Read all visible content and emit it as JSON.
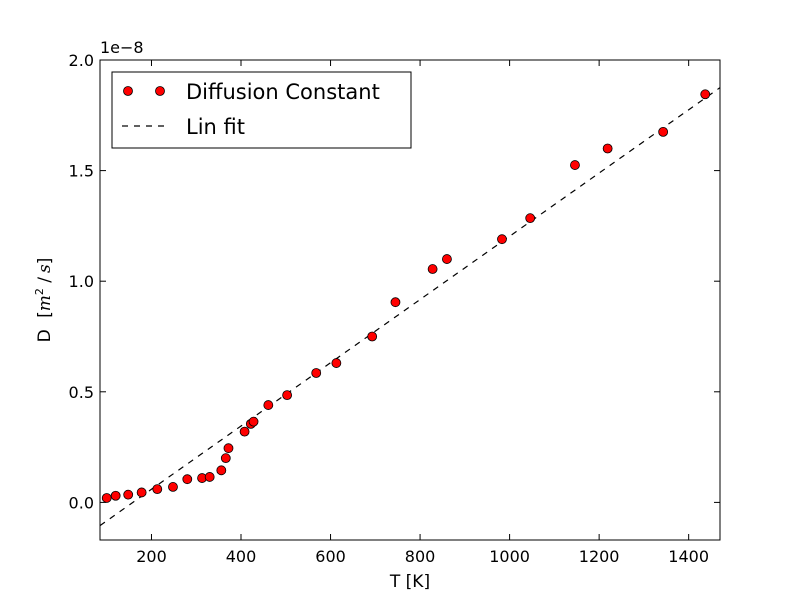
{
  "chart_data": {
    "type": "scatter",
    "xlabel": "T [K]",
    "ylabel": {
      "prefix": "D",
      "unit_open": "[",
      "unit_m": "m",
      "unit_exp": "2",
      "unit_sep": " /",
      "unit_s": "s",
      "unit_close": "]"
    },
    "y_offset_label": "1e−8",
    "xlim": [
      85,
      1470
    ],
    "ylim": [
      -0.17,
      2.0
    ],
    "x_ticks": [
      200,
      400,
      600,
      800,
      1000,
      1200,
      1400
    ],
    "y_ticks": [
      0.0,
      0.5,
      1.0,
      1.5,
      2.0
    ],
    "x_tick_labels": [
      "200",
      "400",
      "600",
      "800",
      "1000",
      "1200",
      "1400"
    ],
    "y_tick_labels": [
      "0.0",
      "0.5",
      "1.0",
      "1.5",
      "2.0"
    ],
    "legend": {
      "position": "upper left",
      "entries": [
        {
          "label": "Diffusion Constant",
          "marker": "circle",
          "color": "#ff0000"
        },
        {
          "label": "Lin fit",
          "line": "dashed",
          "color": "#000000"
        }
      ]
    },
    "series": [
      {
        "name": "Diffusion Constant",
        "color": "#ff0000",
        "x": [
          100,
          120,
          148,
          178,
          213,
          248,
          280,
          313,
          330,
          356,
          366,
          372,
          408,
          422,
          428,
          461,
          503,
          568,
          613,
          693,
          745,
          828,
          860,
          983,
          1046,
          1146,
          1219,
          1343,
          1437
        ],
        "y": [
          0.02,
          0.03,
          0.035,
          0.045,
          0.06,
          0.07,
          0.105,
          0.11,
          0.115,
          0.145,
          0.2,
          0.245,
          0.32,
          0.355,
          0.365,
          0.44,
          0.485,
          0.585,
          0.63,
          0.75,
          0.905,
          1.055,
          1.1,
          1.19,
          1.285,
          1.525,
          1.6,
          1.675,
          1.845
        ]
      },
      {
        "name": "Lin fit",
        "color": "#000000",
        "x": [
          85,
          1470
        ],
        "y": [
          -0.105,
          1.875
        ]
      }
    ]
  }
}
